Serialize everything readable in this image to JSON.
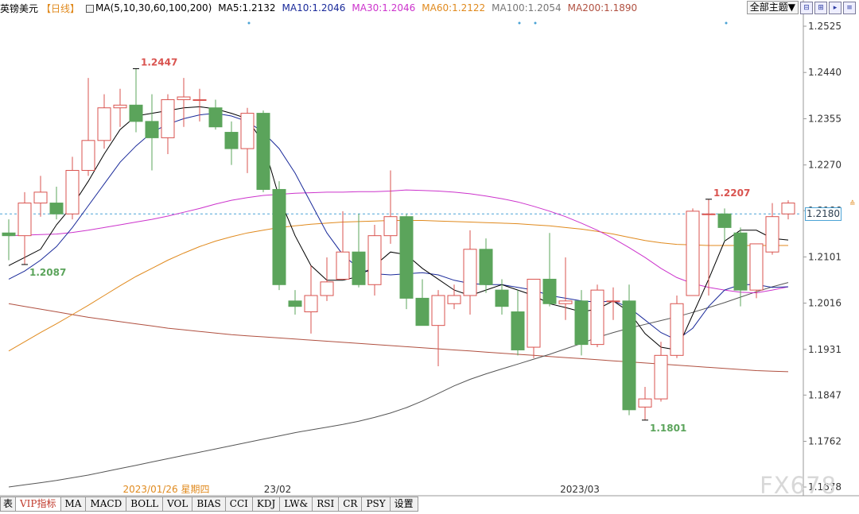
{
  "legend": {
    "symbol": "英镑美元",
    "period": "【日线】",
    "ma_params": "MA(5,10,30,60,100,200)",
    "ma5": "MA5:1.2132",
    "ma10": "MA10:1.2046",
    "ma30": "MA30:1.2046",
    "ma60": "MA60:1.2122",
    "ma100": "MA100:1.2054",
    "ma200": "MA200:1.1890"
  },
  "toolbar": {
    "theme_label": "全部主题▼"
  },
  "tabs": [
    "表",
    "VIP指标",
    "MA",
    "MACD",
    "BOLL",
    "VOL",
    "BIAS",
    "CCI",
    "KDJ",
    "LW&",
    "RSI",
    "CR",
    "PSY",
    "设置"
  ],
  "watermark": "FX678",
  "price_box": "1.2180",
  "colors": {
    "up": "#d9534f",
    "down": "#5ba45b",
    "ma5": "#000000",
    "ma10": "#1a2a9a",
    "ma30": "#cc33cc",
    "ma60": "#e08a1e",
    "ma100": "#555555",
    "ma200": "#b05040"
  },
  "chart_data": {
    "type": "candlestick",
    "title": "英镑美元【日线】",
    "y_ticks": [
      "1.2525",
      "1.2440",
      "1.2355",
      "1.2270",
      "1.2186",
      "1.2101",
      "1.2016",
      "1.1931",
      "1.1847",
      "1.1762",
      "1.1678"
    ],
    "ylim": [
      1.1662,
      1.2544
    ],
    "x_labels": [
      {
        "text": "2023/01/26 星期四",
        "index": 10
      },
      {
        "text": "23/02",
        "index": 17
      },
      {
        "text": "2023/03",
        "index": 36
      }
    ],
    "last_price": 1.218,
    "annotations": [
      {
        "text": "1.2447",
        "index": 8,
        "value": 1.2447,
        "type": "high"
      },
      {
        "text": "1.2087",
        "index": 1,
        "value": 1.2087,
        "type": "low"
      },
      {
        "text": "1.2207",
        "index": 44,
        "value": 1.2207,
        "type": "high"
      },
      {
        "text": "1.1801",
        "index": 40,
        "value": 1.1801,
        "type": "low"
      }
    ],
    "candles": [
      {
        "o": 1.2145,
        "h": 1.217,
        "l": 1.2095,
        "c": 1.214
      },
      {
        "o": 1.214,
        "h": 1.222,
        "l": 1.2087,
        "c": 1.22
      },
      {
        "o": 1.22,
        "h": 1.225,
        "l": 1.2175,
        "c": 1.222
      },
      {
        "o": 1.22,
        "h": 1.223,
        "l": 1.217,
        "c": 1.218
      },
      {
        "o": 1.218,
        "h": 1.2285,
        "l": 1.217,
        "c": 1.226
      },
      {
        "o": 1.226,
        "h": 1.243,
        "l": 1.225,
        "c": 1.2315
      },
      {
        "o": 1.2315,
        "h": 1.24,
        "l": 1.23,
        "c": 1.2375
      },
      {
        "o": 1.2375,
        "h": 1.241,
        "l": 1.234,
        "c": 1.238
      },
      {
        "o": 1.238,
        "h": 1.2447,
        "l": 1.233,
        "c": 1.235
      },
      {
        "o": 1.235,
        "h": 1.24,
        "l": 1.226,
        "c": 1.232
      },
      {
        "o": 1.232,
        "h": 1.24,
        "l": 1.229,
        "c": 1.239
      },
      {
        "o": 1.239,
        "h": 1.243,
        "l": 1.234,
        "c": 1.2395
      },
      {
        "o": 1.239,
        "h": 1.241,
        "l": 1.235,
        "c": 1.239
      },
      {
        "o": 1.2375,
        "h": 1.239,
        "l": 1.2335,
        "c": 1.234
      },
      {
        "o": 1.233,
        "h": 1.235,
        "l": 1.227,
        "c": 1.23
      },
      {
        "o": 1.23,
        "h": 1.2375,
        "l": 1.2255,
        "c": 1.2365
      },
      {
        "o": 1.2365,
        "h": 1.237,
        "l": 1.222,
        "c": 1.2225
      },
      {
        "o": 1.2225,
        "h": 1.224,
        "l": 1.204,
        "c": 1.205
      },
      {
        "o": 1.202,
        "h": 1.204,
        "l": 1.1995,
        "c": 1.201
      },
      {
        "o": 1.2,
        "h": 1.2085,
        "l": 1.196,
        "c": 1.203
      },
      {
        "o": 1.203,
        "h": 1.21,
        "l": 1.202,
        "c": 1.2055
      },
      {
        "o": 1.206,
        "h": 1.2185,
        "l": 1.206,
        "c": 1.211
      },
      {
        "o": 1.211,
        "h": 1.218,
        "l": 1.2045,
        "c": 1.205
      },
      {
        "o": 1.205,
        "h": 1.216,
        "l": 1.203,
        "c": 1.214
      },
      {
        "o": 1.214,
        "h": 1.226,
        "l": 1.2125,
        "c": 1.2175
      },
      {
        "o": 1.2175,
        "h": 1.218,
        "l": 1.2005,
        "c": 1.2025
      },
      {
        "o": 1.2025,
        "h": 1.206,
        "l": 1.1975,
        "c": 1.1975
      },
      {
        "o": 1.1975,
        "h": 1.204,
        "l": 1.19,
        "c": 1.203
      },
      {
        "o": 1.2015,
        "h": 1.205,
        "l": 1.2005,
        "c": 1.203
      },
      {
        "o": 1.203,
        "h": 1.215,
        "l": 1.1995,
        "c": 1.2115
      },
      {
        "o": 1.2115,
        "h": 1.2135,
        "l": 1.2035,
        "c": 1.205
      },
      {
        "o": 1.204,
        "h": 1.206,
        "l": 1.1995,
        "c": 1.201
      },
      {
        "o": 1.2,
        "h": 1.204,
        "l": 1.192,
        "c": 1.193
      },
      {
        "o": 1.1935,
        "h": 1.206,
        "l": 1.1915,
        "c": 1.206
      },
      {
        "o": 1.206,
        "h": 1.2145,
        "l": 1.201,
        "c": 1.2015
      },
      {
        "o": 1.2015,
        "h": 1.21,
        "l": 1.1985,
        "c": 1.202
      },
      {
        "o": 1.202,
        "h": 1.204,
        "l": 1.192,
        "c": 1.194
      },
      {
        "o": 1.194,
        "h": 1.205,
        "l": 1.1935,
        "c": 1.204
      },
      {
        "o": 1.202,
        "h": 1.2045,
        "l": 1.1985,
        "c": 1.202
      },
      {
        "o": 1.202,
        "h": 1.205,
        "l": 1.181,
        "c": 1.182
      },
      {
        "o": 1.1825,
        "h": 1.1862,
        "l": 1.1801,
        "c": 1.184
      },
      {
        "o": 1.184,
        "h": 1.1945,
        "l": 1.1835,
        "c": 1.192
      },
      {
        "o": 1.192,
        "h": 1.203,
        "l": 1.1915,
        "c": 1.2015
      },
      {
        "o": 1.203,
        "h": 1.219,
        "l": 1.203,
        "c": 1.2185
      },
      {
        "o": 1.218,
        "h": 1.2207,
        "l": 1.203,
        "c": 1.218
      },
      {
        "o": 1.218,
        "h": 1.219,
        "l": 1.213,
        "c": 1.2155
      },
      {
        "o": 1.2145,
        "h": 1.2155,
        "l": 1.201,
        "c": 1.204
      },
      {
        "o": 1.204,
        "h": 1.2125,
        "l": 1.2025,
        "c": 1.2125
      },
      {
        "o": 1.211,
        "h": 1.22,
        "l": 1.2105,
        "c": 1.2175
      },
      {
        "o": 1.218,
        "h": 1.2205,
        "l": 1.217,
        "c": 1.22
      }
    ],
    "ma5": [
      1.2085,
      1.21,
      1.2115,
      1.216,
      1.2195,
      1.224,
      1.229,
      1.2335,
      1.236,
      1.2365,
      1.237,
      1.2375,
      1.2377,
      1.2373,
      1.2365,
      1.2355,
      1.231,
      1.221,
      1.214,
      1.2085,
      1.2058,
      1.2058,
      1.2065,
      1.2085,
      1.211,
      1.2105,
      1.208,
      1.206,
      1.204,
      1.203,
      1.204,
      1.205,
      1.204,
      1.203,
      1.2015,
      1.2008,
      1.2,
      1.2005,
      1.202,
      1.2,
      1.196,
      1.1935,
      1.193,
      1.1995,
      1.206,
      1.213,
      1.215,
      1.215,
      1.2135,
      1.2132
    ],
    "ma10": [
      1.206,
      1.2075,
      1.2095,
      1.212,
      1.2155,
      1.2195,
      1.2235,
      1.2275,
      1.2305,
      1.233,
      1.2345,
      1.2355,
      1.2362,
      1.2365,
      1.236,
      1.235,
      1.233,
      1.23,
      1.2255,
      1.22,
      1.2145,
      1.2105,
      1.208,
      1.207,
      1.2068,
      1.207,
      1.2072,
      1.2068,
      1.2058,
      1.2052,
      1.205,
      1.205,
      1.2045,
      1.204,
      1.203,
      1.2025,
      1.202,
      1.2018,
      1.202,
      1.2008,
      1.1985,
      1.1962,
      1.1948,
      1.197,
      1.201,
      1.204,
      1.205,
      1.205,
      1.2045,
      1.2046
    ],
    "ma30": [
      1.214,
      1.2141,
      1.2142,
      1.2143,
      1.2146,
      1.215,
      1.2155,
      1.216,
      1.2165,
      1.217,
      1.2176,
      1.2183,
      1.219,
      1.2198,
      1.2205,
      1.221,
      1.2214,
      1.2216,
      1.2218,
      1.2219,
      1.222,
      1.222,
      1.2221,
      1.2221,
      1.2222,
      1.2224,
      1.2223,
      1.2222,
      1.222,
      1.2217,
      1.2213,
      1.2208,
      1.2202,
      1.2194,
      1.2185,
      1.2175,
      1.2163,
      1.215,
      1.2135,
      1.2118,
      1.21,
      1.208,
      1.2063,
      1.2052,
      1.2045,
      1.204,
      1.2036,
      1.2035,
      1.204,
      1.2046
    ],
    "ma60": [
      1.1928,
      1.1945,
      1.1962,
      1.1978,
      1.1995,
      1.2012,
      1.203,
      1.2048,
      1.2065,
      1.208,
      1.2095,
      1.2108,
      1.212,
      1.213,
      1.2138,
      1.2145,
      1.215,
      1.2155,
      1.2158,
      1.2161,
      1.2163,
      1.2165,
      1.2166,
      1.2167,
      1.2168,
      1.2168,
      1.2168,
      1.2167,
      1.2166,
      1.2165,
      1.2164,
      1.2163,
      1.2162,
      1.216,
      1.2158,
      1.2155,
      1.2152,
      1.2148,
      1.2143,
      1.2137,
      1.2131,
      1.2127,
      1.2124,
      1.2123,
      1.2122,
      1.2122,
      1.2122,
      1.2122,
      1.2122,
      1.2122
    ],
    "ma100": [
      1.1678,
      1.1682,
      1.1686,
      1.169,
      1.1695,
      1.17,
      1.1706,
      1.1712,
      1.1718,
      1.1724,
      1.173,
      1.1736,
      1.1742,
      1.1748,
      1.1754,
      1.176,
      1.1766,
      1.1772,
      1.1778,
      1.1783,
      1.1788,
      1.1793,
      1.1799,
      1.1806,
      1.1814,
      1.1824,
      1.1836,
      1.185,
      1.1864,
      1.1876,
      1.1886,
      1.1895,
      1.1904,
      1.1913,
      1.1922,
      1.1932,
      1.1942,
      1.1953,
      1.1962,
      1.197,
      1.1977,
      1.1984,
      1.1991,
      1.1999,
      1.2008,
      1.2017,
      1.2027,
      1.2037,
      1.2046,
      1.2054
    ],
    "ma200": [
      1.2015,
      1.201,
      1.2005,
      1.2,
      1.1995,
      1.199,
      1.1986,
      1.1982,
      1.1978,
      1.1974,
      1.197,
      1.1967,
      1.1964,
      1.1961,
      1.1958,
      1.1956,
      1.1954,
      1.1952,
      1.195,
      1.1948,
      1.1946,
      1.1944,
      1.1942,
      1.194,
      1.1938,
      1.1936,
      1.1934,
      1.1932,
      1.193,
      1.1928,
      1.1926,
      1.1924,
      1.1922,
      1.192,
      1.1918,
      1.1916,
      1.1914,
      1.1912,
      1.191,
      1.1908,
      1.1906,
      1.1904,
      1.1902,
      1.19,
      1.1898,
      1.1896,
      1.1894,
      1.1892,
      1.1891,
      1.189
    ]
  }
}
